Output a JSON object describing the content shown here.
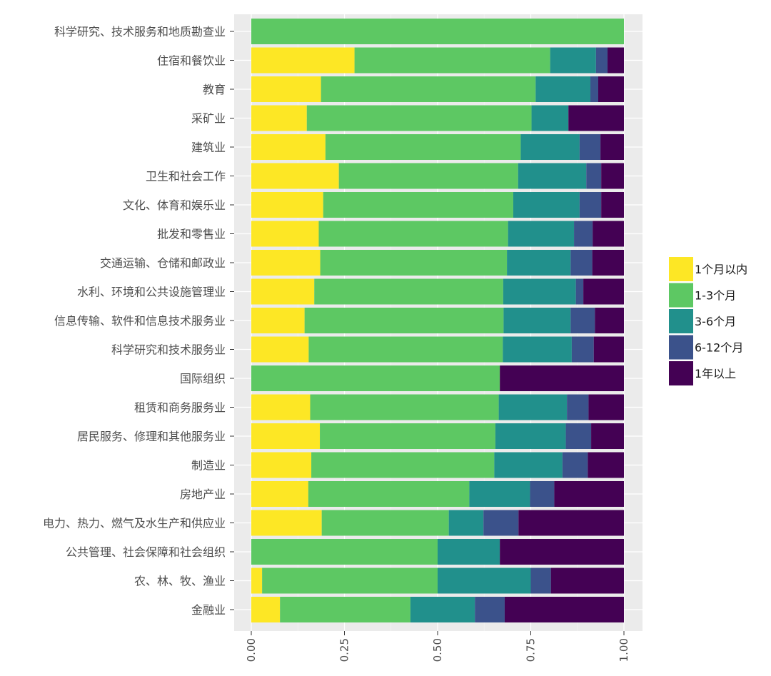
{
  "chart_data": {
    "type": "bar",
    "orientation": "horizontal",
    "stacked": "percent",
    "categories": [
      "科学研究、技术服务和地质勘查业",
      "住宿和餐饮业",
      "教育",
      "采矿业",
      "建筑业",
      "卫生和社会工作",
      "文化、体育和娱乐业",
      "批发和零售业",
      "交通运输、仓储和邮政业",
      "水利、环境和公共设施管理业",
      "信息传输、软件和信息技术服务业",
      "科学研究和技术服务业",
      "国际组织",
      "租赁和商务服务业",
      "居民服务、修理和其他服务业",
      "制造业",
      "房地产业",
      "电力、热力、燃气及水生产和供应业",
      "公共管理、社会保障和社会组织",
      "农、林、牧、渔业",
      "金融业"
    ],
    "series": [
      {
        "name": "1个月以内",
        "color": "#FDE725",
        "values": [
          0.0,
          0.277,
          0.187,
          0.149,
          0.199,
          0.235,
          0.193,
          0.181,
          0.185,
          0.169,
          0.143,
          0.154,
          0.0,
          0.158,
          0.184,
          0.161,
          0.153,
          0.189,
          0.0,
          0.029,
          0.077
        ]
      },
      {
        "name": "1-3个月",
        "color": "#5DC863",
        "values": [
          1.0,
          0.525,
          0.576,
          0.603,
          0.524,
          0.481,
          0.51,
          0.508,
          0.501,
          0.507,
          0.534,
          0.521,
          0.667,
          0.506,
          0.471,
          0.491,
          0.432,
          0.341,
          0.5,
          0.471,
          0.35
        ]
      },
      {
        "name": "3-6个月",
        "color": "#21908C",
        "values": [
          0.0,
          0.123,
          0.147,
          0.099,
          0.158,
          0.183,
          0.178,
          0.177,
          0.171,
          0.195,
          0.18,
          0.185,
          0.0,
          0.183,
          0.189,
          0.183,
          0.163,
          0.093,
          0.167,
          0.25,
          0.173
        ]
      },
      {
        "name": "6-12个月",
        "color": "#3B528B",
        "values": [
          0.0,
          0.031,
          0.021,
          0.0,
          0.056,
          0.04,
          0.058,
          0.05,
          0.058,
          0.02,
          0.065,
          0.059,
          0.0,
          0.058,
          0.068,
          0.068,
          0.065,
          0.094,
          0.0,
          0.054,
          0.08
        ]
      },
      {
        "name": "1年以上",
        "color": "#440154",
        "values": [
          0.0,
          0.044,
          0.069,
          0.149,
          0.063,
          0.061,
          0.061,
          0.084,
          0.085,
          0.109,
          0.078,
          0.081,
          0.333,
          0.095,
          0.088,
          0.097,
          0.187,
          0.283,
          0.333,
          0.196,
          0.32
        ]
      }
    ],
    "xlim": [
      0,
      1
    ],
    "xticks": [
      "0.00",
      "0.25",
      "0.50",
      "0.75",
      "1.00"
    ],
    "xtick_values": [
      0,
      0.25,
      0.5,
      0.75,
      1.0
    ],
    "xlabel": "",
    "ylabel": "",
    "title": "",
    "legend_position": "right",
    "panel_background": "#EBEBEB",
    "grid": true
  }
}
